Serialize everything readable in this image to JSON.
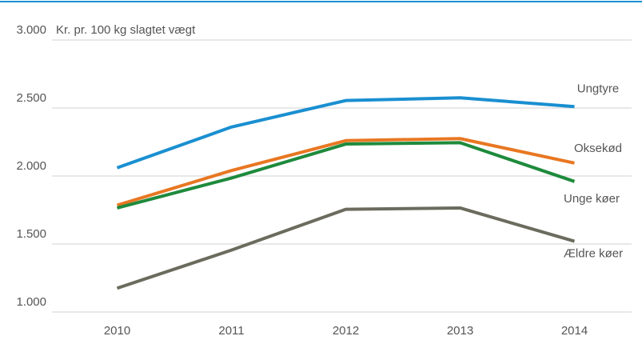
{
  "chart_data": {
    "type": "line",
    "y_axis_label": "Kr. pr. 100 kg slagtet vægt",
    "categories": [
      "2010",
      "2011",
      "2012",
      "2013",
      "2014"
    ],
    "series": [
      {
        "name": "Ungtyre",
        "color": "#1a8fd1",
        "values": [
          2060,
          2360,
          2555,
          2575,
          2510
        ]
      },
      {
        "name": "Oksekød",
        "color": "#e87722",
        "values": [
          1785,
          2040,
          2260,
          2275,
          2095
        ]
      },
      {
        "name": "Unge køer",
        "color": "#1e8a3c",
        "values": [
          1765,
          1985,
          2235,
          2245,
          1960
        ]
      },
      {
        "name": "Ældre køer",
        "color": "#6b6b5e",
        "values": [
          1175,
          1455,
          1755,
          1765,
          1520
        ]
      }
    ],
    "ylim": [
      1000,
      3000
    ],
    "yticks": [
      {
        "value": 1000,
        "label": "1.000"
      },
      {
        "value": 1500,
        "label": "1.500"
      },
      {
        "value": 2000,
        "label": "2.000"
      },
      {
        "value": 2500,
        "label": "2.500"
      },
      {
        "value": 3000,
        "label": "3.000"
      }
    ],
    "grid": true
  }
}
